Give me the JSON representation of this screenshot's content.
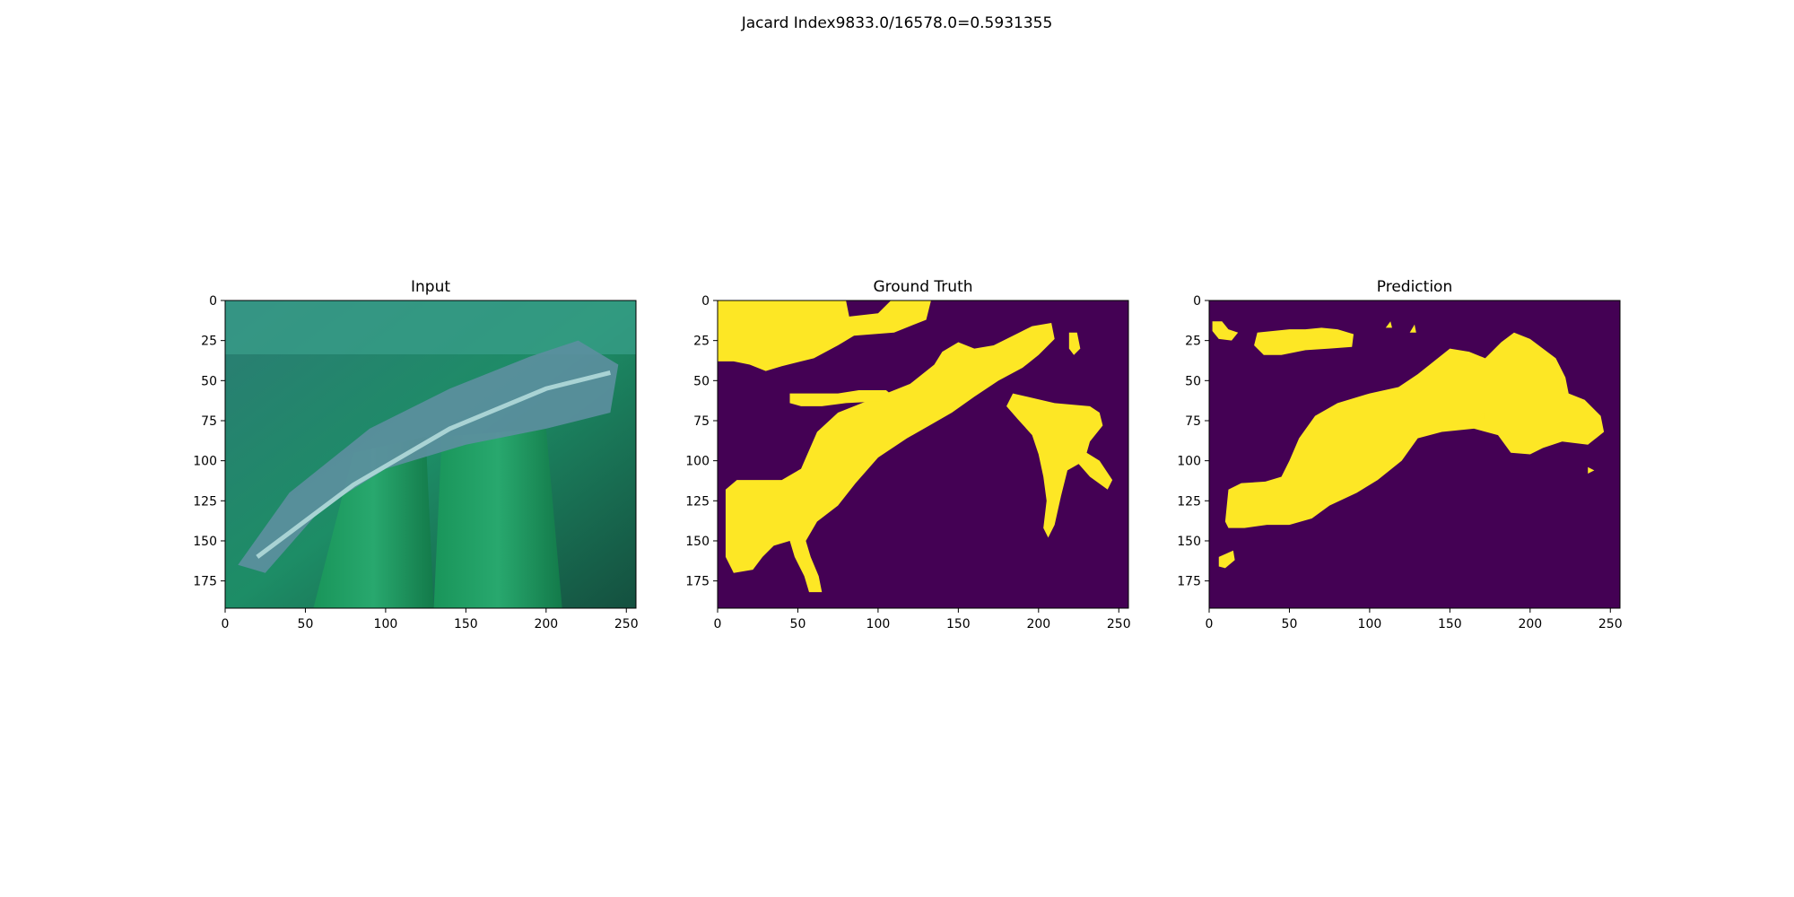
{
  "figure": {
    "suptitle": "Jacard Index9833.0/16578.0=0.5931355"
  },
  "colors": {
    "background": "#440154",
    "foreground": "#fde725",
    "axis": "#000000"
  },
  "chart_data": [
    {
      "type": "image",
      "title": "Input",
      "xlim": [
        0,
        256
      ],
      "ylim": [
        192,
        0
      ],
      "xticks": [
        0,
        50,
        100,
        150,
        200,
        250
      ],
      "yticks": [
        0,
        25,
        50,
        75,
        100,
        125,
        150,
        175
      ],
      "content": "RGB photograph of a leaf"
    },
    {
      "type": "heatmap",
      "title": "Ground Truth",
      "xlim": [
        0,
        256
      ],
      "ylim": [
        192,
        0
      ],
      "xticks": [
        0,
        50,
        100,
        150,
        200,
        250
      ],
      "yticks": [
        0,
        25,
        50,
        75,
        100,
        125,
        150,
        175
      ],
      "mask_regions": [
        [
          [
            0,
            0
          ],
          [
            80,
            0
          ],
          [
            82,
            10
          ],
          [
            100,
            8
          ],
          [
            108,
            0
          ],
          [
            133,
            0
          ],
          [
            130,
            12
          ],
          [
            110,
            20
          ],
          [
            85,
            22
          ],
          [
            75,
            28
          ],
          [
            60,
            36
          ],
          [
            40,
            41
          ],
          [
            30,
            44
          ],
          [
            20,
            40
          ],
          [
            10,
            38
          ],
          [
            0,
            38
          ]
        ],
        [
          [
            5,
            118
          ],
          [
            12,
            112
          ],
          [
            40,
            112
          ],
          [
            52,
            105
          ],
          [
            62,
            82
          ],
          [
            75,
            70
          ],
          [
            95,
            62
          ],
          [
            120,
            52
          ],
          [
            135,
            40
          ],
          [
            140,
            32
          ],
          [
            150,
            26
          ],
          [
            160,
            30
          ],
          [
            172,
            28
          ],
          [
            188,
            20
          ],
          [
            196,
            16
          ],
          [
            208,
            14
          ],
          [
            210,
            24
          ],
          [
            200,
            34
          ],
          [
            190,
            42
          ],
          [
            175,
            50
          ],
          [
            160,
            60
          ],
          [
            146,
            70
          ],
          [
            132,
            78
          ],
          [
            118,
            86
          ],
          [
            100,
            98
          ],
          [
            86,
            114
          ],
          [
            75,
            128
          ],
          [
            62,
            138
          ],
          [
            55,
            150
          ],
          [
            58,
            160
          ],
          [
            63,
            172
          ],
          [
            65,
            182
          ],
          [
            57,
            182
          ],
          [
            54,
            172
          ],
          [
            48,
            160
          ],
          [
            45,
            150
          ],
          [
            35,
            153
          ],
          [
            28,
            160
          ],
          [
            22,
            168
          ],
          [
            10,
            170
          ],
          [
            5,
            160
          ]
        ],
        [
          [
            45,
            58
          ],
          [
            75,
            58
          ],
          [
            88,
            56
          ],
          [
            105,
            56
          ],
          [
            110,
            60
          ],
          [
            100,
            63
          ],
          [
            80,
            64
          ],
          [
            65,
            66
          ],
          [
            52,
            66
          ],
          [
            45,
            64
          ]
        ],
        [
          [
            184,
            58
          ],
          [
            210,
            64
          ],
          [
            232,
            66
          ],
          [
            238,
            70
          ],
          [
            240,
            78
          ],
          [
            232,
            88
          ],
          [
            230,
            95
          ],
          [
            238,
            100
          ],
          [
            246,
            112
          ],
          [
            243,
            118
          ],
          [
            232,
            110
          ],
          [
            225,
            102
          ],
          [
            218,
            106
          ],
          [
            214,
            122
          ],
          [
            210,
            140
          ],
          [
            206,
            148
          ],
          [
            203,
            142
          ],
          [
            205,
            125
          ],
          [
            203,
            110
          ],
          [
            200,
            96
          ],
          [
            196,
            84
          ],
          [
            187,
            74
          ],
          [
            180,
            66
          ]
        ],
        [
          [
            219,
            20
          ],
          [
            224,
            20
          ],
          [
            226,
            30
          ],
          [
            222,
            34
          ],
          [
            219,
            30
          ]
        ]
      ]
    },
    {
      "type": "heatmap",
      "title": "Prediction",
      "xlim": [
        0,
        256
      ],
      "ylim": [
        192,
        0
      ],
      "xticks": [
        0,
        50,
        100,
        150,
        200,
        250
      ],
      "yticks": [
        0,
        25,
        50,
        75,
        100,
        125,
        150,
        175
      ],
      "mask_regions": [
        [
          [
            10,
            138
          ],
          [
            12,
            118
          ],
          [
            20,
            114
          ],
          [
            35,
            113
          ],
          [
            45,
            110
          ],
          [
            50,
            100
          ],
          [
            56,
            86
          ],
          [
            66,
            72
          ],
          [
            80,
            64
          ],
          [
            100,
            58
          ],
          [
            118,
            54
          ],
          [
            130,
            46
          ],
          [
            140,
            38
          ],
          [
            150,
            30
          ],
          [
            162,
            32
          ],
          [
            172,
            36
          ],
          [
            182,
            26
          ],
          [
            190,
            20
          ],
          [
            200,
            24
          ],
          [
            216,
            36
          ],
          [
            222,
            48
          ],
          [
            224,
            58
          ],
          [
            234,
            62
          ],
          [
            244,
            72
          ],
          [
            246,
            82
          ],
          [
            236,
            90
          ],
          [
            220,
            88
          ],
          [
            208,
            92
          ],
          [
            200,
            96
          ],
          [
            188,
            95
          ],
          [
            180,
            84
          ],
          [
            165,
            80
          ],
          [
            145,
            82
          ],
          [
            130,
            86
          ],
          [
            120,
            100
          ],
          [
            105,
            112
          ],
          [
            92,
            120
          ],
          [
            75,
            128
          ],
          [
            64,
            136
          ],
          [
            50,
            140
          ],
          [
            36,
            140
          ],
          [
            22,
            142
          ],
          [
            12,
            142
          ]
        ],
        [
          [
            30,
            20
          ],
          [
            50,
            18
          ],
          [
            60,
            18
          ],
          [
            70,
            17
          ],
          [
            80,
            18
          ],
          [
            90,
            21
          ],
          [
            89,
            29
          ],
          [
            75,
            30
          ],
          [
            60,
            31
          ],
          [
            45,
            34
          ],
          [
            34,
            34
          ],
          [
            28,
            28
          ]
        ],
        [
          [
            2,
            13
          ],
          [
            8,
            13
          ],
          [
            12,
            18
          ],
          [
            18,
            20
          ],
          [
            14,
            25
          ],
          [
            6,
            24
          ],
          [
            2,
            19
          ]
        ],
        [
          [
            6,
            160
          ],
          [
            15,
            156
          ],
          [
            16,
            162
          ],
          [
            10,
            167
          ],
          [
            6,
            166
          ]
        ],
        [
          [
            110,
            17
          ],
          [
            113,
            13
          ],
          [
            114,
            17
          ]
        ],
        [
          [
            125,
            20
          ],
          [
            128,
            15
          ],
          [
            129,
            20
          ]
        ],
        [
          [
            168,
            72
          ],
          [
            172,
            70
          ],
          [
            172,
            74
          ]
        ],
        [
          [
            236,
            104
          ],
          [
            240,
            106
          ],
          [
            236,
            108
          ]
        ]
      ]
    }
  ]
}
